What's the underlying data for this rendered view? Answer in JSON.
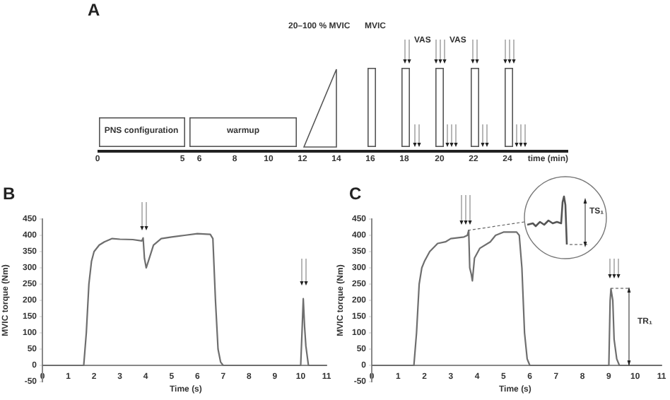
{
  "chart_data": [
    {
      "type": "other",
      "title": "A",
      "xlabel": "time (min)",
      "annotations": [
        "PNS configuration",
        "warmup",
        "20–100 % MVIC",
        "MVIC",
        "VAS",
        "VAS",
        "0",
        "5",
        "6",
        "8",
        "10",
        "12",
        "14",
        "16",
        "18",
        "20",
        "22",
        "24"
      ]
    },
    {
      "type": "line",
      "title": "B",
      "xlabel": "Time (s)",
      "ylabel": "MVIC torque (Nm)",
      "color": "#6e6e6e",
      "marker": "none",
      "grid": false,
      "x": [
        0,
        1.6,
        1.7,
        1.8,
        1.9,
        2.0,
        2.2,
        2.4,
        2.7,
        3.0,
        3.5,
        3.85,
        3.9,
        3.95,
        4.02,
        4.1,
        4.3,
        4.6,
        5.0,
        5.5,
        6.0,
        6.5,
        6.6,
        6.7,
        6.8,
        6.9,
        7.0,
        10.0,
        10.05,
        10.1,
        10.15,
        10.2,
        10.3,
        11
      ],
      "values": [
        0,
        0,
        100,
        250,
        320,
        350,
        370,
        380,
        390,
        388,
        387,
        383,
        392,
        330,
        300,
        320,
        370,
        390,
        395,
        400,
        405,
        403,
        390,
        200,
        50,
        10,
        0,
        0,
        100,
        205,
        120,
        60,
        0,
        0
      ],
      "xlim": [
        0,
        11
      ],
      "xticks": [
        0,
        1,
        2,
        3,
        4,
        5,
        6,
        7,
        8,
        9,
        10,
        11
      ],
      "ylim": [
        -50,
        450
      ],
      "yticks": [
        -50,
        0,
        50,
        100,
        150,
        200,
        250,
        300,
        350,
        400,
        450
      ]
    },
    {
      "type": "line",
      "title": "C",
      "xlabel": "Time (s)",
      "ylabel": "MVIC torque (Nm)",
      "color": "#6e6e6e",
      "marker": "none",
      "grid": false,
      "x": [
        0,
        1.6,
        1.7,
        1.8,
        1.9,
        2.0,
        2.2,
        2.5,
        2.8,
        3.0,
        3.5,
        3.63,
        3.68,
        3.72,
        3.78,
        3.82,
        3.9,
        4.1,
        4.5,
        4.7,
        5.0,
        5.5,
        5.6,
        5.7,
        5.8,
        5.9,
        6.0,
        9.0,
        9.05,
        9.08,
        9.15,
        9.2,
        9.3,
        9.4,
        11
      ],
      "values": [
        0,
        0,
        100,
        250,
        300,
        320,
        350,
        375,
        380,
        390,
        395,
        400,
        415,
        300,
        280,
        260,
        330,
        360,
        380,
        400,
        410,
        410,
        400,
        300,
        100,
        20,
        0,
        0,
        200,
        235,
        200,
        80,
        20,
        0,
        0
      ],
      "xlim": [
        0,
        11
      ],
      "xticks": [
        0,
        1,
        2,
        3,
        4,
        5,
        6,
        7,
        8,
        9,
        10,
        11
      ],
      "ylim": [
        -50,
        450
      ],
      "yticks": [
        -50,
        0,
        50,
        100,
        150,
        200,
        250,
        300,
        350,
        400,
        450
      ],
      "annotations": [
        "TS₁",
        "TR₁"
      ]
    }
  ]
}
